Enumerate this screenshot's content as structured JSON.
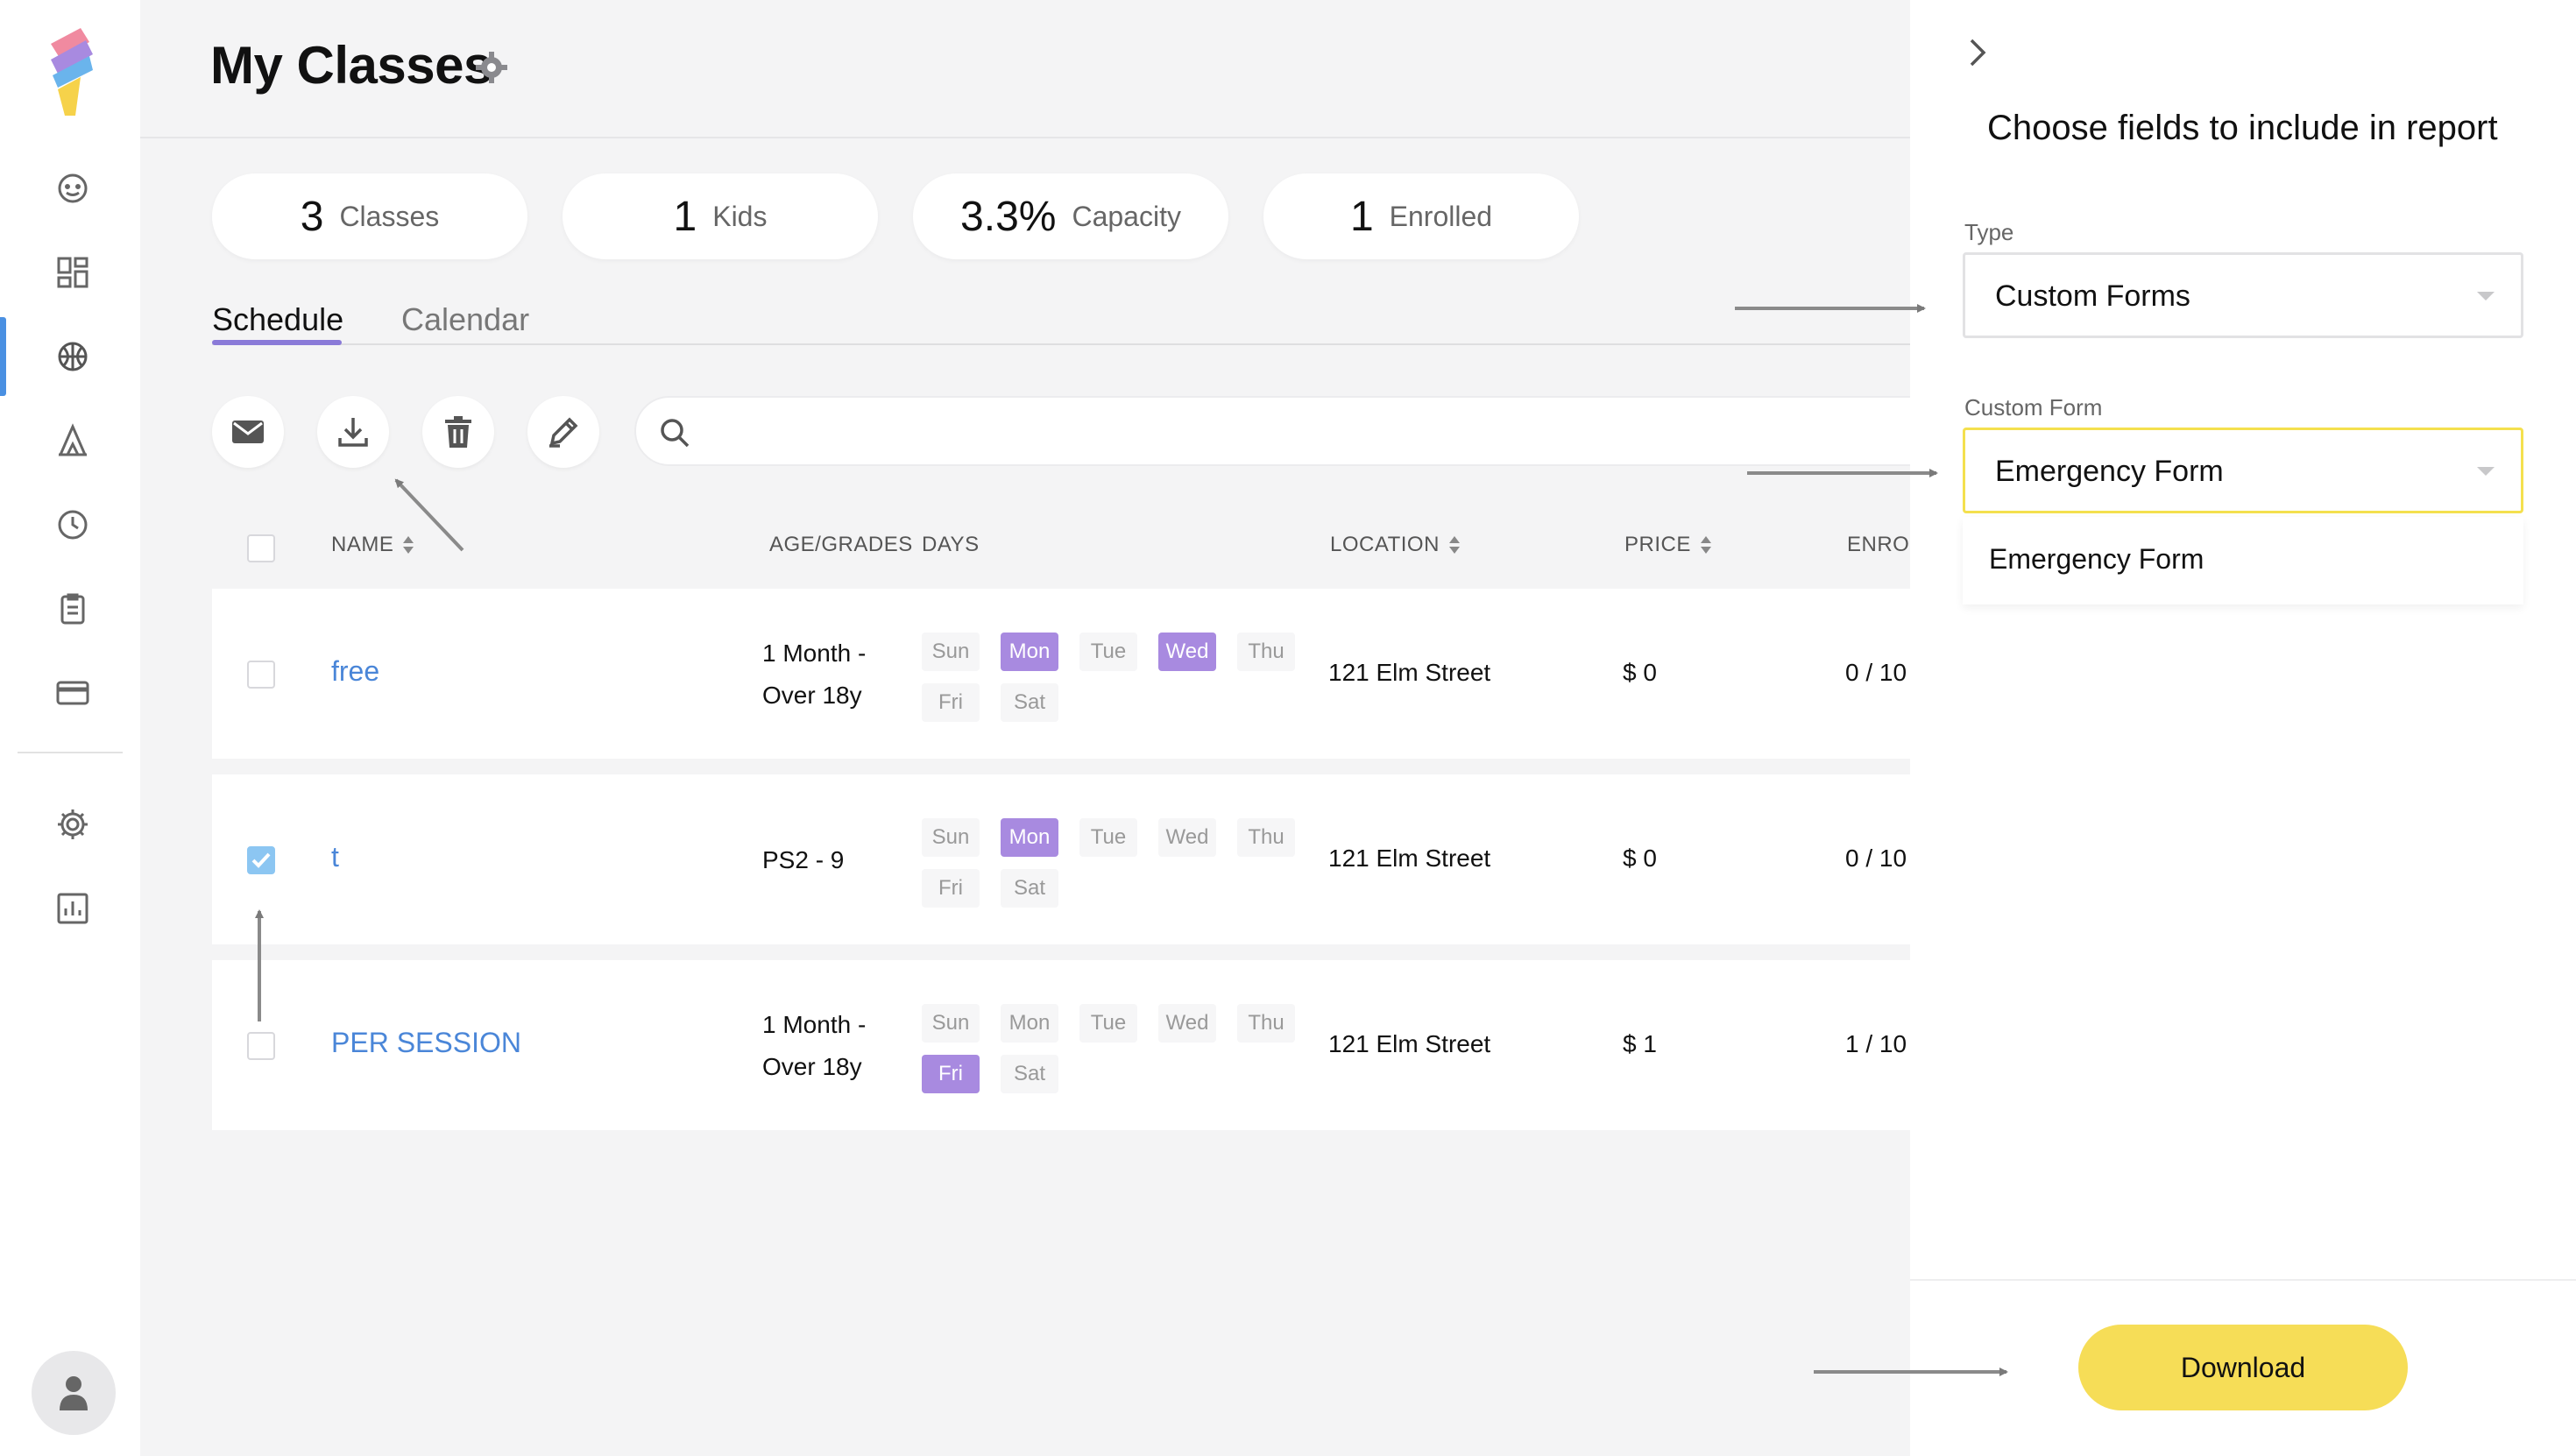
{
  "page": {
    "title": "My Classes"
  },
  "stats": [
    {
      "value": "3",
      "label": "Classes"
    },
    {
      "value": "1",
      "label": "Kids"
    },
    {
      "value": "3.3%",
      "label": "Capacity"
    },
    {
      "value": "1",
      "label": "Enrolled"
    }
  ],
  "tabs": [
    {
      "label": "Schedule",
      "active": true
    },
    {
      "label": "Calendar",
      "active": false
    }
  ],
  "search": {
    "value": "",
    "placeholder": ""
  },
  "table": {
    "columns": [
      "NAME",
      "AGE/GRADES",
      "DAYS",
      "LOCATION",
      "PRICE",
      "ENROI"
    ],
    "day_labels": [
      "Sun",
      "Mon",
      "Tue",
      "Wed",
      "Thu",
      "Fri",
      "Sat"
    ],
    "rows": [
      {
        "name": "free",
        "age_line1": "1 Month -",
        "age_line2": "Over 18y",
        "active_days": [
          "Mon",
          "Wed"
        ],
        "location": "121 Elm Street",
        "price": "$ 0",
        "enrolled": "0 / 10",
        "checked": false
      },
      {
        "name": "t",
        "age_line1": "PS2 - 9",
        "age_line2": "",
        "active_days": [
          "Mon"
        ],
        "location": "121 Elm Street",
        "price": "$ 0",
        "enrolled": "0 / 10",
        "checked": true
      },
      {
        "name": "PER SESSION",
        "age_line1": "1 Month -",
        "age_line2": "Over 18y",
        "active_days": [
          "Fri"
        ],
        "location": "121 Elm Street",
        "price": "$ 1",
        "enrolled": "1 / 10",
        "checked": false
      }
    ]
  },
  "panel": {
    "title": "Choose fields to include in report",
    "type_label": "Type",
    "type_value": "Custom Forms",
    "form_label": "Custom Form",
    "form_value": "Emergency Form",
    "dropdown_options": [
      "Emergency Form"
    ],
    "download_label": "Download"
  },
  "colors": {
    "accent_purple": "#a88ae0",
    "link_blue": "#4a86d8",
    "download_yellow": "#f6dd57",
    "nav_active": "#4a90e2"
  }
}
